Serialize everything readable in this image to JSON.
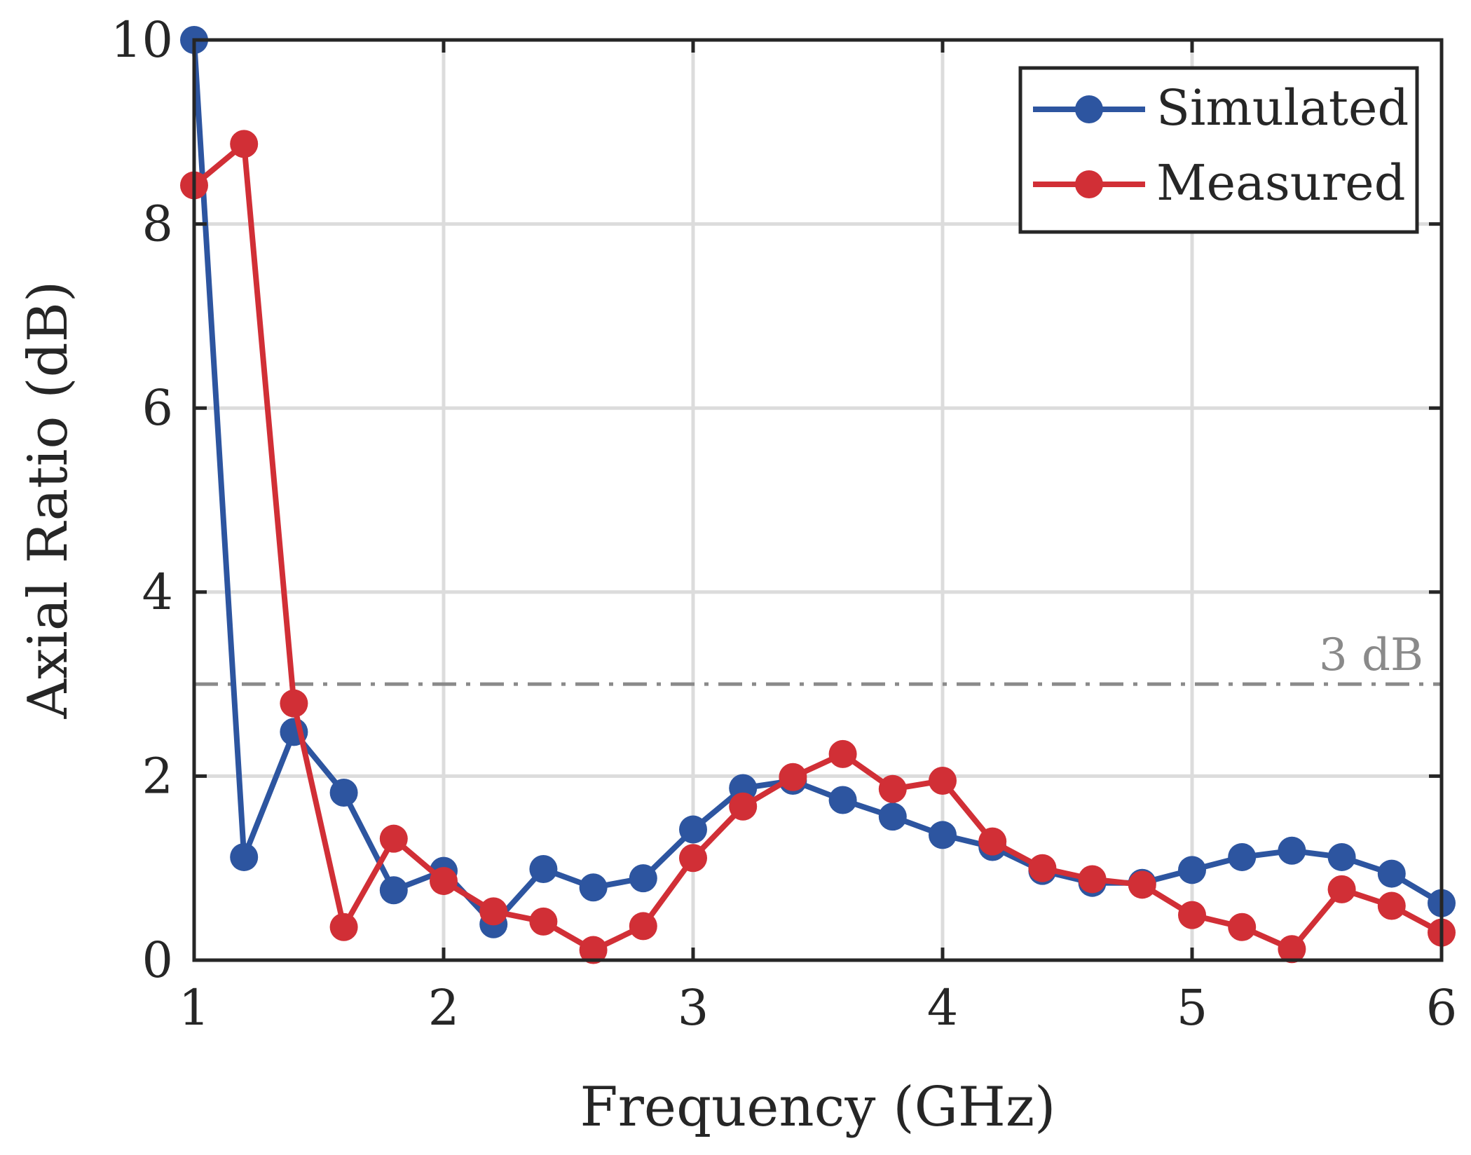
{
  "chart_data": {
    "type": "line",
    "title": "",
    "xlabel": "Frequency (GHz)",
    "ylabel": "Axial Ratio (dB)",
    "xlim": [
      1,
      6
    ],
    "ylim": [
      0,
      10
    ],
    "xticks": [
      1,
      2,
      3,
      4,
      5,
      6
    ],
    "yticks": [
      0,
      2,
      4,
      6,
      8,
      10
    ],
    "xtick_labels": [
      "1",
      "2",
      "3",
      "4",
      "5",
      "6"
    ],
    "ytick_labels": [
      "0",
      "2",
      "4",
      "6",
      "8",
      "10"
    ],
    "grid": true,
    "legend_position": "top-right",
    "x": [
      1.0,
      1.2,
      1.4,
      1.6,
      1.8,
      2.0,
      2.2,
      2.4,
      2.6,
      2.8,
      3.0,
      3.2,
      3.4,
      3.6,
      3.8,
      4.0,
      4.2,
      4.4,
      4.6,
      4.8,
      5.0,
      5.2,
      5.4,
      5.6,
      5.8,
      6.0
    ],
    "series": [
      {
        "name": "Simulated",
        "color": "#2d55a0",
        "values": [
          10.0,
          1.12,
          2.48,
          1.82,
          0.76,
          0.97,
          0.39,
          0.99,
          0.79,
          0.89,
          1.42,
          1.87,
          1.95,
          1.74,
          1.56,
          1.36,
          1.23,
          0.97,
          0.84,
          0.84,
          0.98,
          1.12,
          1.19,
          1.12,
          0.94,
          0.62
        ]
      },
      {
        "name": "Measured",
        "color": "#d12f36",
        "values": [
          8.42,
          8.87,
          2.79,
          0.36,
          1.32,
          0.86,
          0.53,
          0.42,
          0.11,
          0.37,
          1.11,
          1.67,
          1.99,
          2.24,
          1.86,
          1.95,
          1.29,
          1.0,
          0.88,
          0.82,
          0.49,
          0.36,
          0.12,
          0.77,
          0.59,
          0.3
        ]
      }
    ],
    "reference_line": {
      "y": 3,
      "label": "3 dB",
      "color": "#8a8a8a"
    }
  }
}
